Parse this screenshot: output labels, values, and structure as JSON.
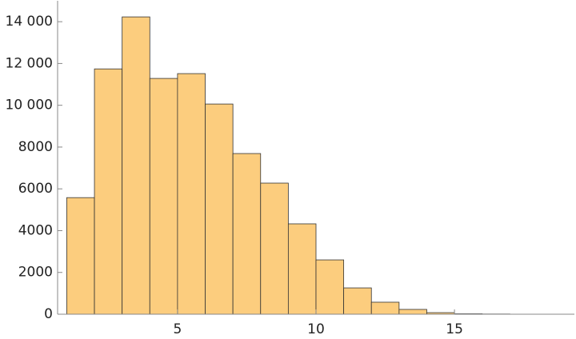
{
  "chart_data": {
    "type": "histogram",
    "bins": [
      1,
      2,
      3,
      4,
      5,
      6,
      7,
      8,
      9,
      10,
      11,
      12,
      13,
      14,
      15,
      16,
      17
    ],
    "values": [
      5580,
      11740,
      14230,
      11285,
      11515,
      10060,
      7690,
      6275,
      4325,
      2600,
      1260,
      575,
      230,
      75,
      20,
      10
    ],
    "color": "#fccd7e",
    "xlim": [
      0.67,
      19.33
    ],
    "xticks": [
      5,
      10,
      15
    ],
    "ylim": [
      0,
      15000
    ],
    "yticks": [
      0,
      2000,
      4000,
      6000,
      8000,
      {
        "value": 10000,
        "label": "10 000"
      },
      {
        "value": 12000,
        "label": "12 000"
      },
      {
        "value": 14000,
        "label": "14 000"
      }
    ]
  }
}
